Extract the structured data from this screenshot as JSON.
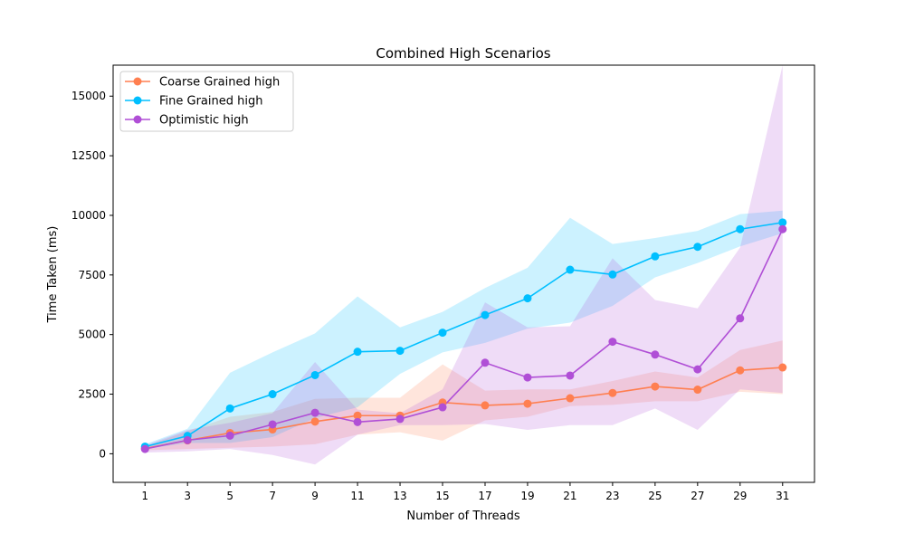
{
  "chart_data": {
    "type": "line",
    "title": "Combined High Scenarios",
    "xlabel": "Number of Threads",
    "ylabel": "Time Taken (ms)",
    "x": [
      1,
      3,
      5,
      7,
      9,
      11,
      13,
      15,
      17,
      19,
      21,
      23,
      25,
      27,
      29,
      31
    ],
    "xlim": [
      -0.5,
      32.5
    ],
    "ylim": [
      -1200,
      16300
    ],
    "yticks": [
      0,
      2500,
      5000,
      7500,
      10000,
      12500,
      15000
    ],
    "grid": false,
    "legend_position": "top-left",
    "series": [
      {
        "name": "Coarse Grained high",
        "color": "#ff7f50",
        "values": [
          220,
          560,
          870,
          1020,
          1350,
          1600,
          1600,
          2150,
          2030,
          2100,
          2330,
          2550,
          2820,
          2690,
          3500,
          3620
        ],
        "lower": [
          150,
          200,
          250,
          300,
          400,
          800,
          900,
          550,
          1400,
          1550,
          2000,
          2050,
          2200,
          2200,
          2600,
          2500
        ],
        "upper": [
          300,
          950,
          1550,
          1750,
          2300,
          2350,
          2350,
          3750,
          2650,
          2700,
          2700,
          3050,
          3450,
          3200,
          4350,
          4750
        ]
      },
      {
        "name": "Fine Grained high",
        "color": "#00bfff",
        "values": [
          300,
          750,
          1900,
          2500,
          3300,
          4280,
          4320,
          5080,
          5820,
          6520,
          7720,
          7520,
          8280,
          8680,
          9420,
          9700
        ],
        "lower": [
          200,
          450,
          450,
          700,
          1500,
          1950,
          3350,
          4250,
          4650,
          5250,
          5500,
          6200,
          7400,
          8000,
          8700,
          9250
        ],
        "upper": [
          400,
          1050,
          3400,
          4250,
          5050,
          6600,
          5300,
          5950,
          6950,
          7800,
          9900,
          8800,
          9050,
          9350,
          10050,
          10200
        ]
      },
      {
        "name": "Optimistic high",
        "color": "#b04fd6",
        "values": [
          200,
          570,
          760,
          1230,
          1720,
          1330,
          1460,
          1950,
          3820,
          3200,
          3280,
          4700,
          4160,
          3540,
          5680,
          9420
        ],
        "lower": [
          50,
          100,
          200,
          -50,
          -450,
          800,
          1200,
          1200,
          1250,
          1000,
          1200,
          1200,
          1900,
          1000,
          2700,
          2550
        ],
        "upper": [
          350,
          1000,
          1300,
          1700,
          3850,
          1850,
          1700,
          2700,
          6350,
          5300,
          5350,
          8200,
          6450,
          6100,
          8650,
          16300
        ]
      }
    ]
  }
}
